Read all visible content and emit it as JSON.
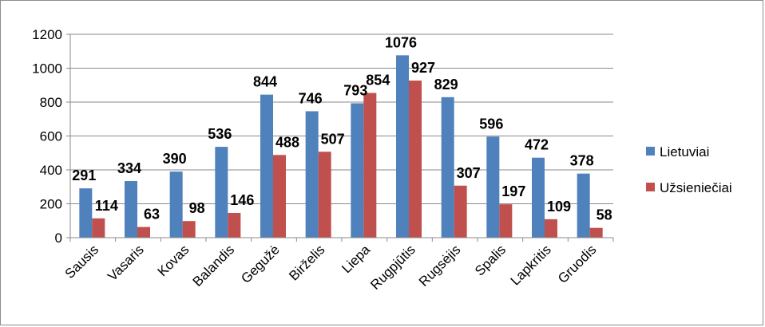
{
  "chart_data": {
    "type": "bar",
    "categories": [
      "Sausis",
      "Vasaris",
      "Kovas",
      "Balandis",
      "Gegužė",
      "Birželis",
      "Liepa",
      "Rugpjūtis",
      "Rugsėjis",
      "Spalis",
      "Lapkritis",
      "Gruodis"
    ],
    "series": [
      {
        "name": "Lietuviai",
        "color": "#4f81bd",
        "values": [
          291,
          334,
          390,
          536,
          844,
          746,
          793,
          1076,
          829,
          596,
          472,
          378
        ]
      },
      {
        "name": "Užsieniečiai",
        "color": "#c0504d",
        "values": [
          114,
          63,
          98,
          146,
          488,
          507,
          854,
          927,
          307,
          197,
          109,
          58
        ]
      }
    ],
    "yticks": [
      0,
      200,
      400,
      600,
      800,
      1000,
      1200
    ],
    "ylim": [
      0,
      1200
    ],
    "grid": true,
    "legend": "right"
  }
}
